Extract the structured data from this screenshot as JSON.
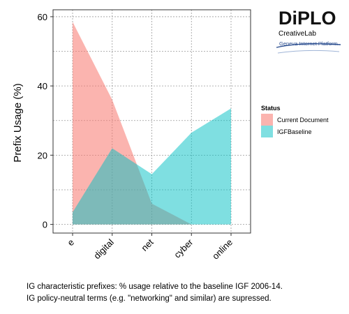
{
  "logo": {
    "name": "DiPLO",
    "subtitle": "CreativeLab",
    "tagline": "Geneva Internet Platform"
  },
  "caption": {
    "line1": "IG characteristic prefixes: % usage relative to the baseline IGF 2006-14.",
    "line2": "IG policy-neutral terms (e.g. \"networking\" and similar) are supressed."
  },
  "colors": {
    "current_document": "#f8766d",
    "igf_baseline": "#00bfc4",
    "overlap": "#b5aaa5"
  },
  "chart_data": {
    "type": "area",
    "categories": [
      "e",
      "digital",
      "net",
      "cyber",
      "online"
    ],
    "series": [
      {
        "name": "Current Document",
        "values": [
          58.5,
          36,
          6,
          0,
          0
        ]
      },
      {
        "name": "IGFBaseline",
        "values": [
          3.5,
          22,
          14.5,
          26.5,
          33.5
        ]
      }
    ],
    "xlabel": "",
    "ylabel": "Prefix Usage (%)",
    "ylim": [
      -2.5,
      62
    ],
    "yticks": [
      0,
      20,
      40,
      60
    ],
    "grid": true,
    "legend": {
      "title": "Status",
      "placement": "right"
    }
  }
}
